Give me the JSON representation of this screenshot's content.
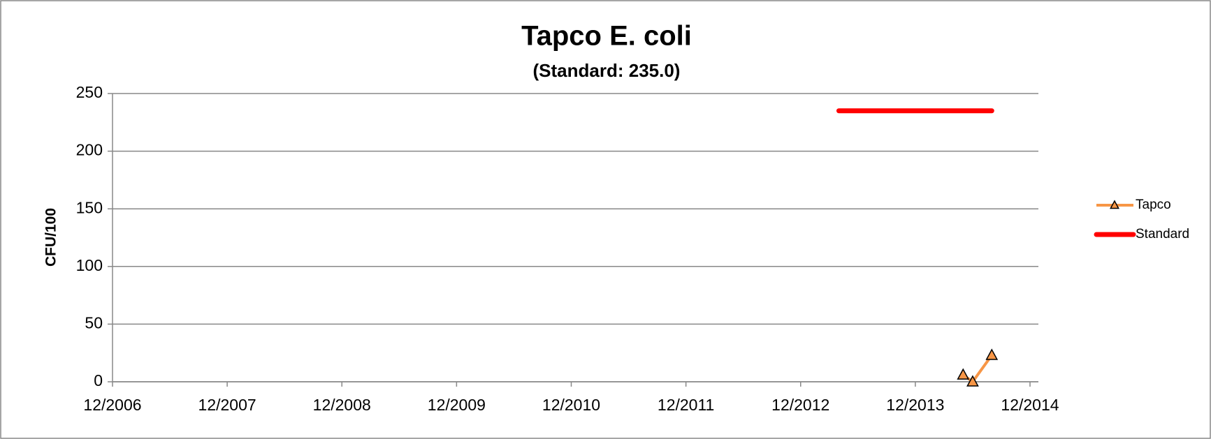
{
  "chart_data": {
    "type": "line",
    "title": "Tapco E. coli",
    "subtitle": "(Standard: 235.0)",
    "y_label": "CFU/100",
    "xlim": [
      "2006-12",
      "2014-12"
    ],
    "xticks": [
      {
        "value": "2006-12",
        "label": "12/2006"
      },
      {
        "value": "2007-12",
        "label": "12/2007"
      },
      {
        "value": "2008-12",
        "label": "12/2008"
      },
      {
        "value": "2009-12",
        "label": "12/2009"
      },
      {
        "value": "2010-12",
        "label": "12/2010"
      },
      {
        "value": "2011-12",
        "label": "12/2011"
      },
      {
        "value": "2012-12",
        "label": "12/2012"
      },
      {
        "value": "2013-12",
        "label": "12/2013"
      },
      {
        "value": "2014-12",
        "label": "12/2014"
      }
    ],
    "ylim": [
      0,
      250
    ],
    "yticks": [
      0,
      50,
      100,
      150,
      200,
      250
    ],
    "grid": true,
    "legend": "right",
    "series": [
      {
        "name": "Tapco",
        "color": "#f79646",
        "marker": "triangle",
        "x": [
          "2014-05",
          "2014-06",
          "2014-08"
        ],
        "values": [
          6,
          0,
          23
        ]
      },
      {
        "name": "Standard",
        "color": "#ff0000",
        "x": [
          "2013-04",
          "2014-08"
        ],
        "values": [
          235,
          235
        ]
      }
    ]
  }
}
